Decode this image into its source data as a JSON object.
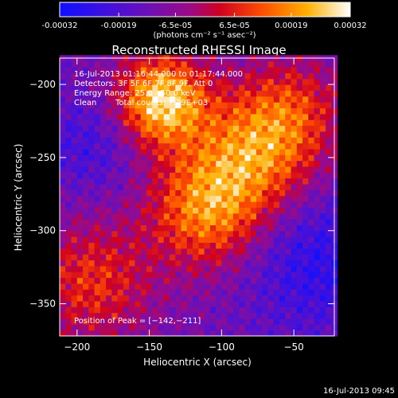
{
  "colorbar": {
    "tick_labels": [
      "-0.00032",
      "-0.00019",
      "-6.5e-05",
      "6.5e-05",
      "0.00019",
      "0.00032"
    ],
    "tick_values": [
      -0.00032,
      -0.00019,
      -6.5e-05,
      6.5e-05,
      0.00019,
      0.00032
    ],
    "range": [
      -0.00032,
      0.00032
    ],
    "unit_label": "(photons cm⁻² s⁻¹ asec⁻²)",
    "colors": [
      "#0000ff",
      "#5500cc",
      "#7a00a0",
      "#9a0080",
      "#ff0000",
      "#ff8800",
      "#ffff00",
      "#ffffff"
    ]
  },
  "chart_data": {
    "type": "heatmap",
    "title": "Reconstructed RHESSI Image",
    "xlabel": "Heliocentric X (arcsec)",
    "ylabel": "Heliocentric Y (arcsec)",
    "xlim": [
      -212,
      -22
    ],
    "ylim": [
      -372,
      -182
    ],
    "x_ticks": [
      -200,
      -150,
      -100,
      -50
    ],
    "y_ticks": [
      -350,
      -300,
      -250,
      -200
    ],
    "x_tick_labels": [
      "−200",
      "−150",
      "−100",
      "−50"
    ],
    "y_tick_labels": [
      "−350",
      "−300",
      "−250",
      "−200"
    ],
    "pixel_size_arcsec": 4,
    "peak": [
      -142,
      -211
    ],
    "annotations": {
      "time_range": "16-Jul-2013 01:16:44.000 to 01:17:44.000",
      "detectors": "Detectors: 3F 5F 6F 7F 8F 9F, Att 0",
      "energy_range": "Energy Range: 25.0 - 50.0 keV",
      "clean_label": "Clean",
      "total_counts": "Total counts: 7.29E+03",
      "peak_position": "Position of Peak = [−142,−211]"
    }
  },
  "footer": {
    "timestamp": "16-Jul-2013 09:45"
  }
}
